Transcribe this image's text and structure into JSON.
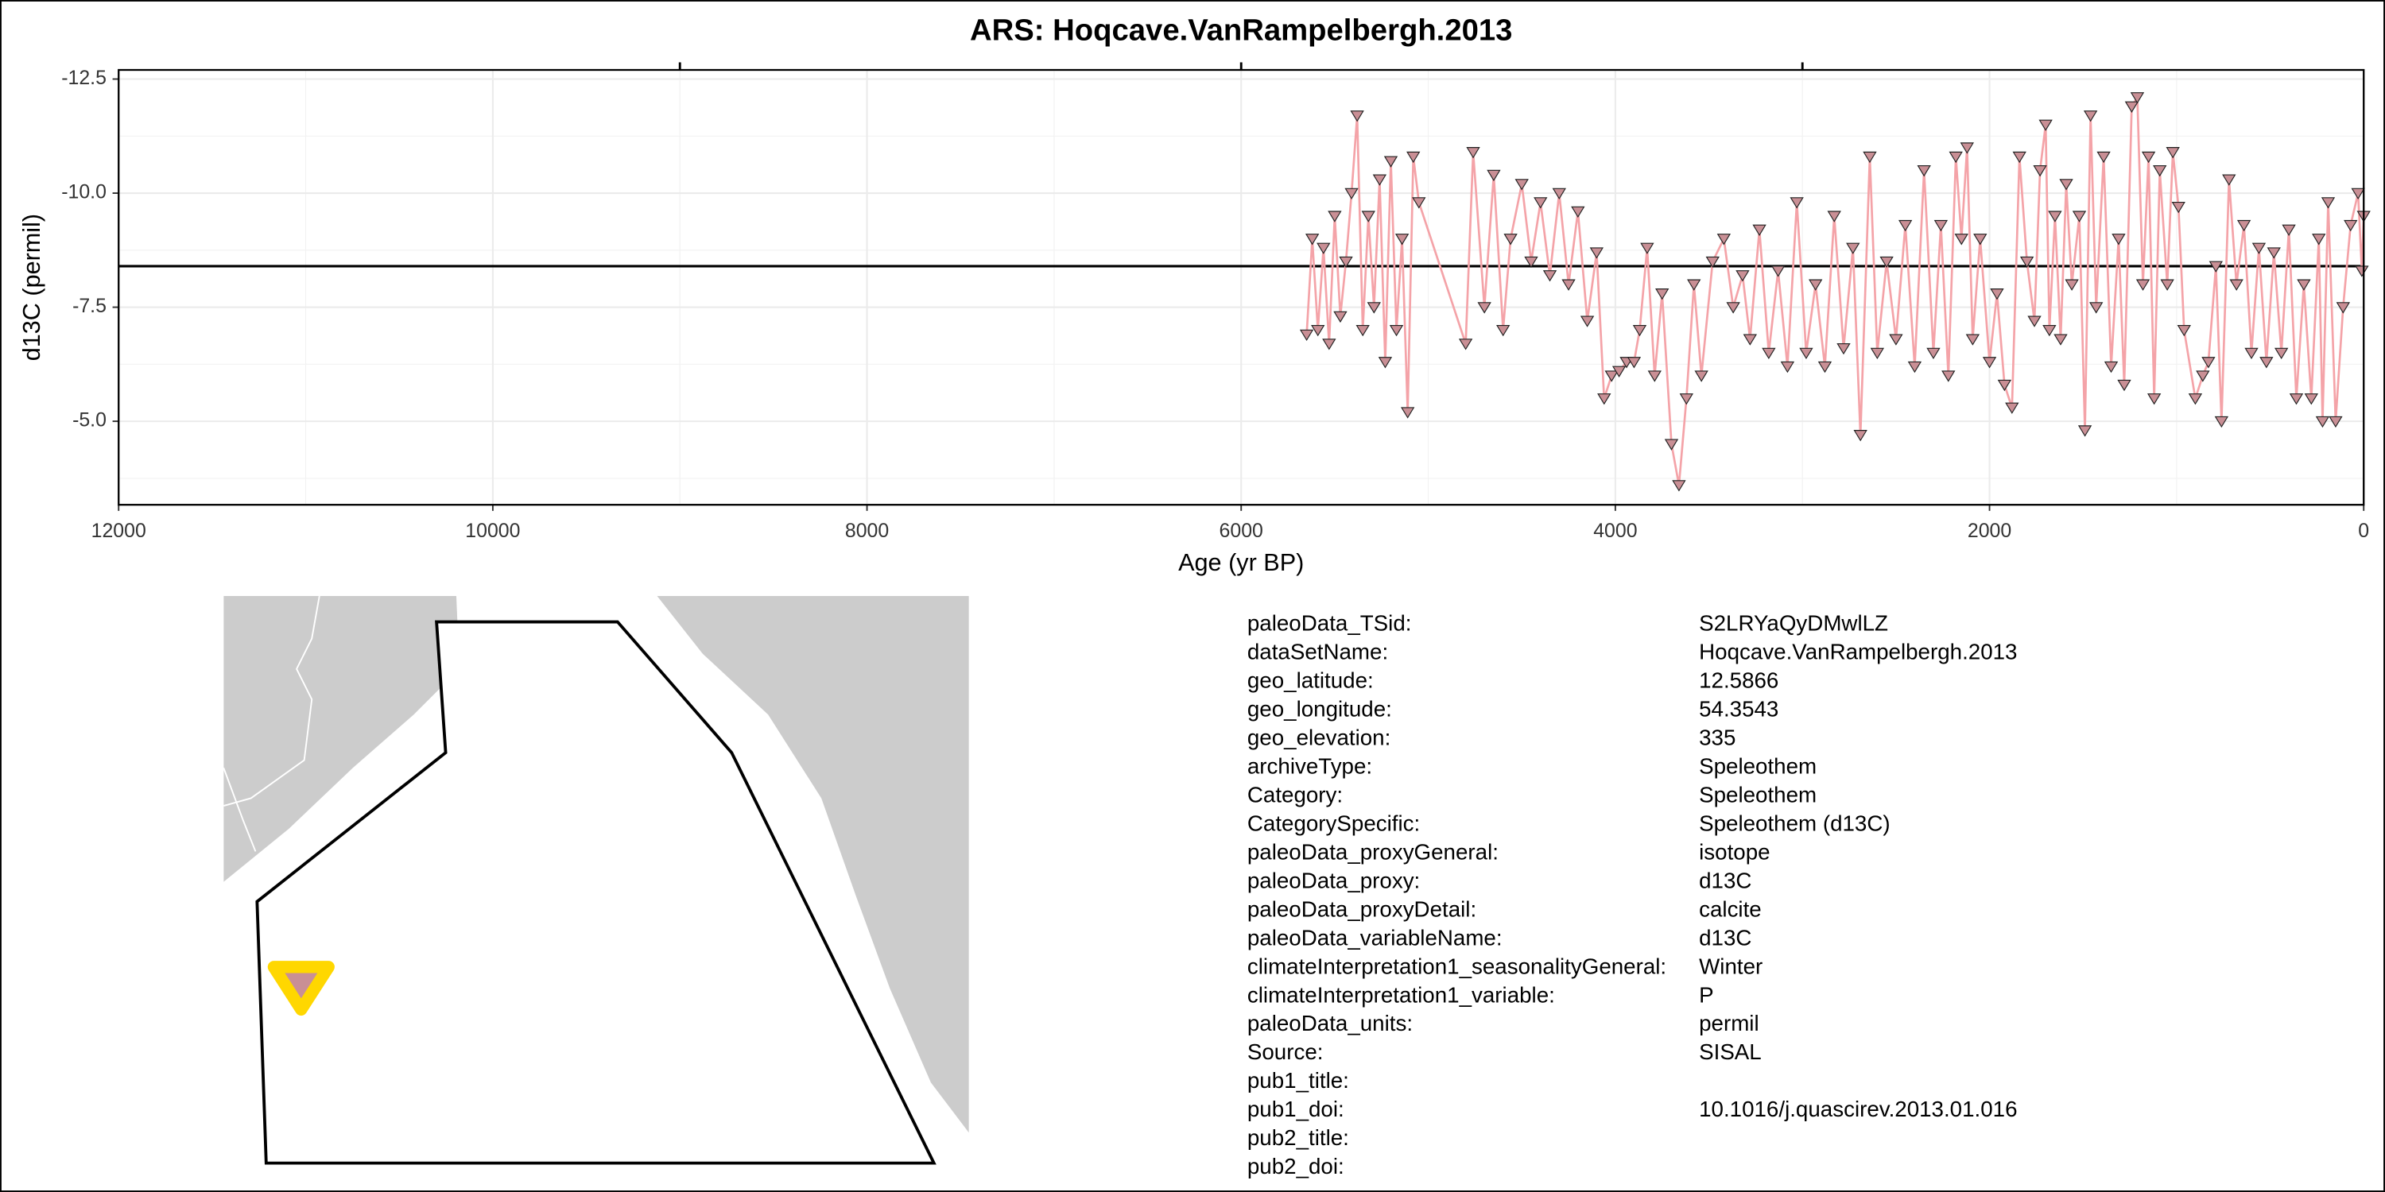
{
  "chart_data": {
    "type": "line",
    "title": "ARS: Hoqcave.VanRampelbergh.2013",
    "xlabel": "Age (yr BP)",
    "ylabel": "d13C (permil)",
    "xlim": [
      12000,
      0
    ],
    "ylim": [
      -12.7,
      -3.17
    ],
    "xticks": [
      12000,
      10000,
      8000,
      6000,
      4000,
      2000,
      0
    ],
    "x2ticks": [
      9000,
      6000,
      3000
    ],
    "yticks": [
      -12.5,
      {
        "value": -10,
        "label": "-10.0"
      },
      -7.5,
      {
        "value": -5,
        "label": "-5.0"
      }
    ],
    "hline": -8.4,
    "grid": true,
    "markers": "triangle-down",
    "x": [
      5650,
      5620,
      5590,
      5560,
      5530,
      5500,
      5470,
      5440,
      5410,
      5380,
      5350,
      5320,
      5290,
      5260,
      5230,
      5200,
      5170,
      5140,
      5110,
      5080,
      5050,
      4800,
      4760,
      4700,
      4650,
      4600,
      4560,
      4500,
      4450,
      4400,
      4350,
      4300,
      4250,
      4200,
      4150,
      4100,
      4060,
      4020,
      3980,
      3940,
      3900,
      3870,
      3830,
      3790,
      3750,
      3700,
      3660,
      3620,
      3580,
      3540,
      3480,
      3420,
      3370,
      3320,
      3280,
      3230,
      3180,
      3130,
      3080,
      3030,
      2980,
      2930,
      2880,
      2830,
      2780,
      2730,
      2690,
      2640,
      2600,
      2550,
      2500,
      2450,
      2400,
      2350,
      2300,
      2260,
      2220,
      2180,
      2150,
      2120,
      2090,
      2050,
      2000,
      1960,
      1920,
      1880,
      1840,
      1800,
      1760,
      1730,
      1700,
      1680,
      1650,
      1620,
      1590,
      1560,
      1520,
      1490,
      1460,
      1430,
      1390,
      1350,
      1310,
      1280,
      1240,
      1210,
      1180,
      1150,
      1120,
      1090,
      1050,
      1020,
      990,
      960,
      900,
      860,
      830,
      790,
      760,
      720,
      680,
      640,
      600,
      560,
      520,
      480,
      440,
      400,
      360,
      320,
      280,
      240,
      220,
      190,
      150,
      110,
      70,
      30,
      10,
      0
    ],
    "series": [
      {
        "color": "#f4a3a8",
        "marker_color": "#c98f95",
        "values": [
          -6.9,
          -9.0,
          -7.0,
          -8.8,
          -6.7,
          -9.5,
          -7.3,
          -8.5,
          -10.0,
          -11.7,
          -7.0,
          -9.5,
          -7.5,
          -10.3,
          -6.3,
          -10.7,
          -7.0,
          -9.0,
          -5.2,
          -10.8,
          -9.8,
          -6.7,
          -10.9,
          -7.5,
          -10.4,
          -7.0,
          -9.0,
          -10.2,
          -8.5,
          -9.8,
          -8.2,
          -10.0,
          -8.0,
          -9.6,
          -7.2,
          -8.7,
          -5.5,
          -6.0,
          -6.1,
          -6.3,
          -6.3,
          -7.0,
          -8.8,
          -6.0,
          -7.8,
          -4.5,
          -3.6,
          -5.5,
          -8.0,
          -6.0,
          -8.5,
          -9.0,
          -7.5,
          -8.2,
          -6.8,
          -9.2,
          -6.5,
          -8.3,
          -6.2,
          -9.8,
          -6.5,
          -8.0,
          -6.2,
          -9.5,
          -6.6,
          -8.8,
          -4.7,
          -10.8,
          -6.5,
          -8.5,
          -6.8,
          -9.3,
          -6.2,
          -10.5,
          -6.5,
          -9.3,
          -6.0,
          -10.8,
          -9.0,
          -11.0,
          -6.8,
          -9.0,
          -6.3,
          -7.8,
          -5.8,
          -5.3,
          -10.8,
          -8.5,
          -7.2,
          -10.5,
          -11.5,
          -7.0,
          -9.5,
          -6.8,
          -10.2,
          -8.0,
          -9.5,
          -4.8,
          -11.7,
          -7.5,
          -10.8,
          -6.2,
          -9.0,
          -5.8,
          -11.9,
          -12.1,
          -8.0,
          -10.8,
          -5.5,
          -10.5,
          -8.0,
          -10.9,
          -9.7,
          -7.0,
          -5.5,
          -6.0,
          -6.3,
          -8.4,
          -5.0,
          -10.3,
          -8.0,
          -9.3,
          -6.5,
          -8.8,
          -6.3,
          -8.7,
          -6.5,
          -9.2,
          -5.5,
          -8.0,
          -5.5,
          -9.0,
          -5.0,
          -9.8,
          -5.0,
          -7.5,
          -9.3,
          -10.0,
          -8.3,
          -9.5
        ]
      }
    ]
  },
  "metadata": [
    {
      "key": "paleoData_TSid:",
      "value": "S2LRYaQyDMwlLZ"
    },
    {
      "key": "dataSetName:",
      "value": "Hoqcave.VanRampelbergh.2013"
    },
    {
      "key": "geo_latitude:",
      "value": "12.5866"
    },
    {
      "key": "geo_longitude:",
      "value": "54.3543"
    },
    {
      "key": "geo_elevation:",
      "value": "335"
    },
    {
      "key": "archiveType:",
      "value": "Speleothem"
    },
    {
      "key": "Category:",
      "value": "Speleothem"
    },
    {
      "key": "CategorySpecific:",
      "value": "Speleothem (d13C)"
    },
    {
      "key": "paleoData_proxyGeneral:",
      "value": "isotope"
    },
    {
      "key": "paleoData_proxy:",
      "value": "d13C"
    },
    {
      "key": "paleoData_proxyDetail:",
      "value": "calcite"
    },
    {
      "key": "paleoData_variableName:",
      "value": "d13C"
    },
    {
      "key": "climateInterpretation1_seasonalityGeneral:",
      "value": "Winter"
    },
    {
      "key": "climateInterpretation1_variable:",
      "value": "P"
    },
    {
      "key": "paleoData_units:",
      "value": "permil"
    },
    {
      "key": "Source:",
      "value": "SISAL"
    },
    {
      "key": "pub1_title:"
    },
    {
      "key": "pub1_doi:",
      "value": "10.1016/j.quascirev.2013.01.016"
    },
    {
      "key": "pub2_title:"
    },
    {
      "key": "pub2_doi:"
    }
  ]
}
